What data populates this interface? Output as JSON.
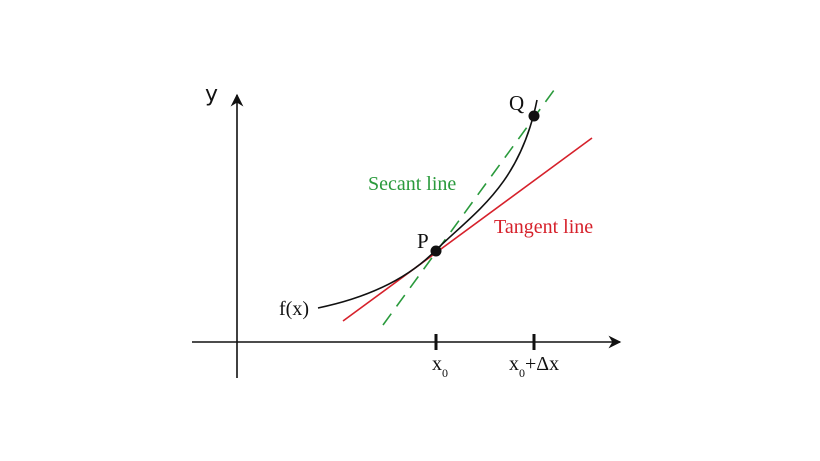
{
  "diagram": {
    "y_axis_label": "y",
    "function_label": "f(x)",
    "point_p_label": "P",
    "point_q_label": "Q",
    "secant_label": "Secant line",
    "tangent_label": "Tangent line",
    "tick_x0_main": "x",
    "tick_x0_sub": "0",
    "tick_x1_main": "x",
    "tick_x1_sub": "0",
    "tick_x1_suffix": "+Δx",
    "colors": {
      "secant": "#2a9a3c",
      "tangent": "#d6212b",
      "curve": "#111111"
    }
  }
}
